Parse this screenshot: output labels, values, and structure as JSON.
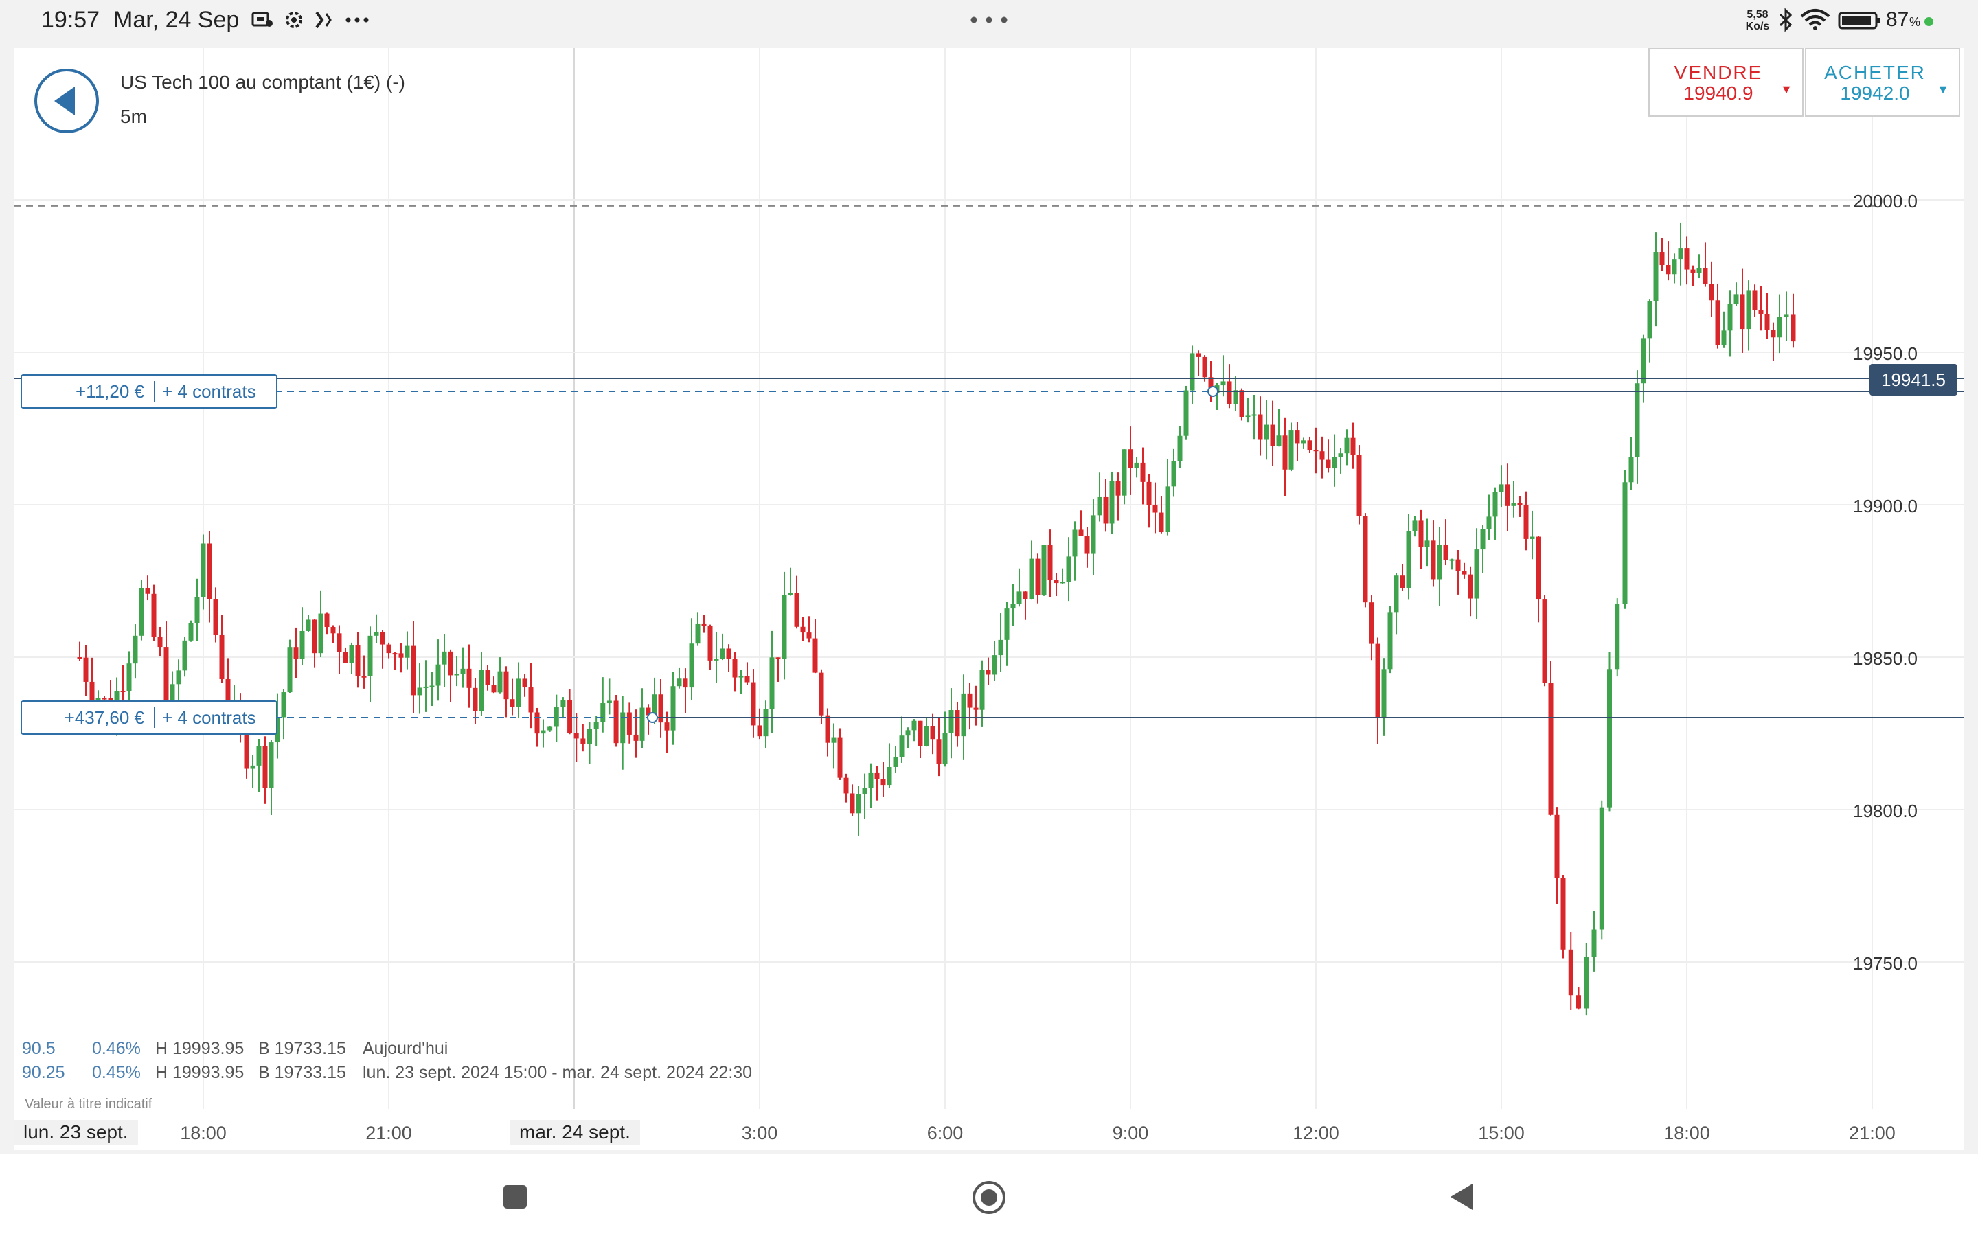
{
  "status_bar": {
    "time": "19:57",
    "date": "Mar, 24 Sep",
    "net_speed_value": "5,58",
    "net_speed_unit": "Ko/s",
    "battery": "87",
    "battery_unit": "%",
    "icons": [
      "notification-icon",
      "settings-icon",
      "sync-icon",
      "more-icon",
      "bluetooth-icon",
      "wifi-icon",
      "battery-icon"
    ]
  },
  "header": {
    "instrument": "US Tech 100 au comptant (1€) (-)",
    "timeframe": "5m",
    "sell": {
      "label": "VENDRE",
      "price": "19940.9"
    },
    "buy": {
      "label": "ACHETER",
      "price": "19942.0"
    }
  },
  "positions": [
    {
      "pnl": "+11,20 €",
      "contracts": "+ 4 contrats",
      "level": 19937
    },
    {
      "pnl": "+437,60 €",
      "contracts": "+ 4 contrats",
      "level": 19830.5
    }
  ],
  "current_price": "19941.5",
  "stats": [
    {
      "points": "90.5",
      "percent": "0.46%",
      "high": "H 19993.95",
      "low": "B 19733.15",
      "period": "Aujourd'hui"
    },
    {
      "points": "90.25",
      "percent": "0.45%",
      "high": "H 19993.95",
      "low": "B 19733.15",
      "period": "lun. 23 sept. 2024 15:00 - mar. 24 sept. 2024 22:30"
    }
  ],
  "note": "Valeur à titre indicatif",
  "date_labels": [
    "lun. 23 sept.",
    "mar. 24 sept."
  ],
  "colors": {
    "up": "#3fa34d",
    "down": "#d9262b",
    "accent": "#2f6fa8",
    "sell": "#d9262b",
    "buy": "#2596be",
    "price_tag": "#34506e"
  },
  "chart_data": {
    "type": "candlestick",
    "title": "US Tech 100 au comptant (1€) (-)",
    "interval": "5m",
    "y_ticks": [
      20000.0,
      19950.0,
      19900.0,
      19850.0,
      19800.0,
      19750.0
    ],
    "y_tick_labels": [
      "20000.0",
      "19950.0",
      "19900.0",
      "19850.0",
      "19800.0",
      "19750.0"
    ],
    "ylim": [
      19705,
      20050
    ],
    "x_ticks": [
      "18:00",
      "21:00",
      "3:00",
      "6:00",
      "9:00",
      "12:00",
      "15:00",
      "18:00",
      "21:00"
    ],
    "reference_line": 19998,
    "series": [
      {
        "name": "close_path",
        "times": [
          "16:00",
          "16:30",
          "17:00",
          "17:30",
          "18:00",
          "18:30",
          "19:00",
          "19:30",
          "20:00",
          "20:30",
          "21:00",
          "21:30",
          "22:00",
          "22:30",
          "23:00",
          "23:30",
          "1:00",
          "1:30",
          "2:00",
          "2:30",
          "3:00",
          "3:30",
          "4:00",
          "4:30",
          "5:00",
          "5:30",
          "6:00",
          "6:30",
          "7:00",
          "7:30",
          "8:00",
          "8:30",
          "9:00",
          "9:30",
          "10:00",
          "10:30",
          "11:00",
          "11:30",
          "12:00",
          "12:30",
          "13:00",
          "13:30",
          "14:00",
          "14:30",
          "15:00",
          "15:30",
          "16:00",
          "16:15",
          "16:30",
          "16:45",
          "17:00",
          "17:30",
          "18:00",
          "18:30",
          "19:00",
          "19:30",
          "19:50"
        ],
        "values": [
          19850,
          19830,
          19870,
          19835,
          19880,
          19825,
          19815,
          19855,
          19860,
          19850,
          19858,
          19840,
          19845,
          19838,
          19838,
          19830,
          19828,
          19832,
          19855,
          19850,
          19832,
          19870,
          19835,
          19805,
          19812,
          19825,
          19822,
          19838,
          19870,
          19878,
          19882,
          19895,
          19915,
          19888,
          19955,
          19935,
          19925,
          19918,
          19912,
          19928,
          19838,
          19890,
          19880,
          19875,
          19910,
          19890,
          19750,
          19735,
          19760,
          19850,
          19900,
          19980,
          19985,
          19960,
          19965,
          19962,
          19942
        ]
      }
    ]
  }
}
